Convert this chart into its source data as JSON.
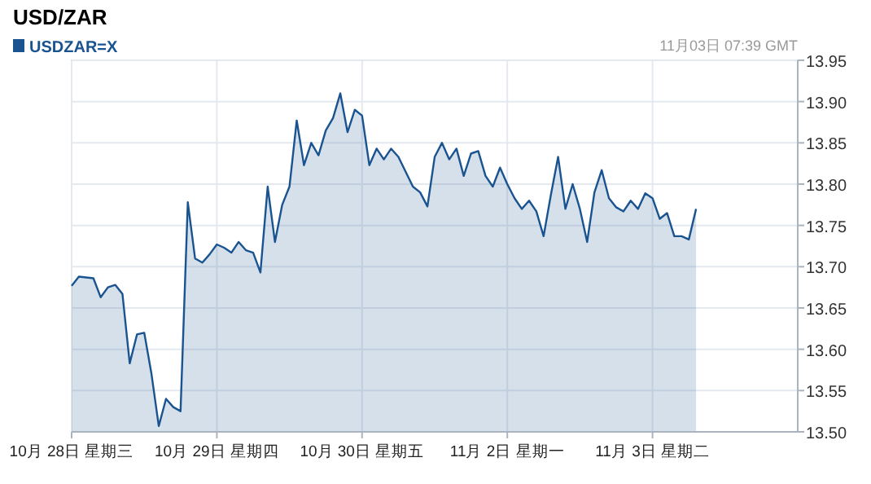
{
  "chart_data": {
    "type": "area",
    "title": "USD/ZAR",
    "subtitle": "11月03日  07:39 GMT",
    "legend": "top left",
    "grid": true,
    "categories": [
      "10月 28日  星期三",
      null,
      null,
      null,
      null,
      null,
      null,
      null,
      null,
      null,
      null,
      null,
      null,
      null,
      null,
      null,
      null,
      null,
      null,
      null,
      "10月 29日  星期四",
      null,
      null,
      null,
      null,
      null,
      null,
      null,
      null,
      null,
      null,
      null,
      null,
      null,
      null,
      null,
      null,
      null,
      null,
      null,
      "10月 30日  星期五",
      null,
      null,
      null,
      null,
      null,
      null,
      null,
      null,
      null,
      null,
      null,
      null,
      null,
      null,
      null,
      null,
      null,
      null,
      null,
      "11月  2日  星期一",
      null,
      null,
      null,
      null,
      null,
      null,
      null,
      null,
      null,
      null,
      null,
      null,
      null,
      null,
      null,
      null,
      null,
      null,
      null,
      "11月  3日  星期二",
      null,
      null,
      null,
      null,
      null,
      null,
      null,
      null,
      null,
      null,
      null,
      null,
      null,
      null,
      null,
      null,
      null,
      null,
      null,
      null
    ],
    "ylim": [
      13.5,
      13.95
    ],
    "yticks": [
      {
        "value": 13.5,
        "label": "13.50"
      },
      {
        "value": 13.55,
        "label": "13.55"
      },
      {
        "value": 13.6,
        "label": "13.60"
      },
      {
        "value": 13.65,
        "label": "13.65"
      },
      {
        "value": 13.7,
        "label": "13.70"
      },
      {
        "value": 13.75,
        "label": "13.75"
      },
      {
        "value": 13.8,
        "label": "13.80"
      },
      {
        "value": 13.85,
        "label": "13.85"
      },
      {
        "value": 13.9,
        "label": "13.90"
      },
      {
        "value": 13.95,
        "label": "13.95"
      }
    ],
    "series": [
      {
        "name": "USDZAR=X",
        "color": "#1a5490",
        "values": [
          13.677,
          13.688,
          13.687,
          13.686,
          13.663,
          13.675,
          13.678,
          13.667,
          13.583,
          13.618,
          13.62,
          13.57,
          13.507,
          13.54,
          13.53,
          13.525,
          13.778,
          13.71,
          13.705,
          13.715,
          13.727,
          13.723,
          13.717,
          13.73,
          13.72,
          13.717,
          13.693,
          13.797,
          13.73,
          13.775,
          13.797,
          13.877,
          13.823,
          13.85,
          13.835,
          13.865,
          13.88,
          13.91,
          13.863,
          13.89,
          13.883,
          13.823,
          13.843,
          13.83,
          13.843,
          13.833,
          13.815,
          13.797,
          13.79,
          13.773,
          13.833,
          13.85,
          13.83,
          13.843,
          13.81,
          13.837,
          13.84,
          13.81,
          13.797,
          13.82,
          13.8,
          13.783,
          13.77,
          13.78,
          13.767,
          13.737,
          13.787,
          13.833,
          13.77,
          13.8,
          13.77,
          13.73,
          13.79,
          13.817,
          13.783,
          13.772,
          13.767,
          13.78,
          13.77,
          13.789,
          13.783,
          13.758,
          13.765,
          13.737,
          13.737,
          13.733,
          13.77,
          null,
          null,
          null,
          null,
          null,
          null,
          null,
          null,
          null,
          null,
          null,
          null,
          null,
          null
        ]
      }
    ]
  }
}
